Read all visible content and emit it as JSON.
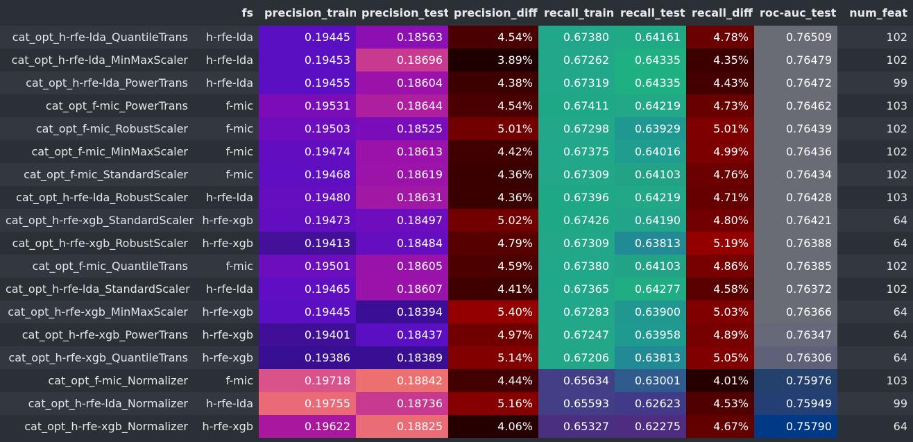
{
  "table": {
    "columns": [
      {
        "key": "fs",
        "label": "fs"
      },
      {
        "key": "precision_train",
        "label": "precision_train"
      },
      {
        "key": "precision_test",
        "label": "precision_test"
      },
      {
        "key": "precision_diff",
        "label": "precision_diff"
      },
      {
        "key": "recall_train",
        "label": "recall_train"
      },
      {
        "key": "recall_test",
        "label": "recall_test"
      },
      {
        "key": "recall_diff",
        "label": "recall_diff"
      },
      {
        "key": "roc_auc_test",
        "label": "roc-auc_test"
      },
      {
        "key": "num_feat",
        "label": "num_feat"
      }
    ],
    "rows": [
      {
        "name": "cat_opt_h-rfe-lda_QuantileTrans",
        "fs": "h-rfe-lda",
        "precision_train": "0.19445",
        "precision_test": "0.18563",
        "precision_diff": "4.54%",
        "recall_train": "0.67380",
        "recall_test": "0.64161",
        "recall_diff": "4.78%",
        "roc_auc_test": "0.76509",
        "num_feat": "102"
      },
      {
        "name": "cat_opt_h-rfe-lda_MinMaxScaler",
        "fs": "h-rfe-lda",
        "precision_train": "0.19453",
        "precision_test": "0.18696",
        "precision_diff": "3.89%",
        "recall_train": "0.67262",
        "recall_test": "0.64335",
        "recall_diff": "4.35%",
        "roc_auc_test": "0.76479",
        "num_feat": "102"
      },
      {
        "name": "cat_opt_h-rfe-lda_PowerTrans",
        "fs": "h-rfe-lda",
        "precision_train": "0.19455",
        "precision_test": "0.18604",
        "precision_diff": "4.38%",
        "recall_train": "0.67319",
        "recall_test": "0.64335",
        "recall_diff": "4.43%",
        "roc_auc_test": "0.76472",
        "num_feat": "99"
      },
      {
        "name": "cat_opt_f-mic_PowerTrans",
        "fs": "f-mic",
        "precision_train": "0.19531",
        "precision_test": "0.18644",
        "precision_diff": "4.54%",
        "recall_train": "0.67411",
        "recall_test": "0.64219",
        "recall_diff": "4.73%",
        "roc_auc_test": "0.76462",
        "num_feat": "103"
      },
      {
        "name": "cat_opt_f-mic_RobustScaler",
        "fs": "f-mic",
        "precision_train": "0.19503",
        "precision_test": "0.18525",
        "precision_diff": "5.01%",
        "recall_train": "0.67298",
        "recall_test": "0.63929",
        "recall_diff": "5.01%",
        "roc_auc_test": "0.76439",
        "num_feat": "102"
      },
      {
        "name": "cat_opt_f-mic_MinMaxScaler",
        "fs": "f-mic",
        "precision_train": "0.19474",
        "precision_test": "0.18613",
        "precision_diff": "4.42%",
        "recall_train": "0.67375",
        "recall_test": "0.64016",
        "recall_diff": "4.99%",
        "roc_auc_test": "0.76436",
        "num_feat": "102"
      },
      {
        "name": "cat_opt_f-mic_StandardScaler",
        "fs": "f-mic",
        "precision_train": "0.19468",
        "precision_test": "0.18619",
        "precision_diff": "4.36%",
        "recall_train": "0.67309",
        "recall_test": "0.64103",
        "recall_diff": "4.76%",
        "roc_auc_test": "0.76434",
        "num_feat": "102"
      },
      {
        "name": "cat_opt_h-rfe-lda_RobustScaler",
        "fs": "h-rfe-lda",
        "precision_train": "0.19480",
        "precision_test": "0.18631",
        "precision_diff": "4.36%",
        "recall_train": "0.67396",
        "recall_test": "0.64219",
        "recall_diff": "4.71%",
        "roc_auc_test": "0.76428",
        "num_feat": "103"
      },
      {
        "name": "cat_opt_h-rfe-xgb_StandardScaler",
        "fs": "h-rfe-xgb",
        "precision_train": "0.19473",
        "precision_test": "0.18497",
        "precision_diff": "5.02%",
        "recall_train": "0.67426",
        "recall_test": "0.64190",
        "recall_diff": "4.80%",
        "roc_auc_test": "0.76421",
        "num_feat": "64"
      },
      {
        "name": "cat_opt_h-rfe-xgb_RobustScaler",
        "fs": "h-rfe-xgb",
        "precision_train": "0.19413",
        "precision_test": "0.18484",
        "precision_diff": "4.79%",
        "recall_train": "0.67309",
        "recall_test": "0.63813",
        "recall_diff": "5.19%",
        "roc_auc_test": "0.76388",
        "num_feat": "64"
      },
      {
        "name": "cat_opt_f-mic_QuantileTrans",
        "fs": "f-mic",
        "precision_train": "0.19501",
        "precision_test": "0.18605",
        "precision_diff": "4.59%",
        "recall_train": "0.67380",
        "recall_test": "0.64103",
        "recall_diff": "4.86%",
        "roc_auc_test": "0.76385",
        "num_feat": "102"
      },
      {
        "name": "cat_opt_h-rfe-lda_StandardScaler",
        "fs": "h-rfe-lda",
        "precision_train": "0.19465",
        "precision_test": "0.18607",
        "precision_diff": "4.41%",
        "recall_train": "0.67365",
        "recall_test": "0.64277",
        "recall_diff": "4.58%",
        "roc_auc_test": "0.76372",
        "num_feat": "102"
      },
      {
        "name": "cat_opt_h-rfe-xgb_MinMaxScaler",
        "fs": "h-rfe-xgb",
        "precision_train": "0.19445",
        "precision_test": "0.18394",
        "precision_diff": "5.40%",
        "recall_train": "0.67283",
        "recall_test": "0.63900",
        "recall_diff": "5.03%",
        "roc_auc_test": "0.76366",
        "num_feat": "64"
      },
      {
        "name": "cat_opt_h-rfe-xgb_PowerTrans",
        "fs": "h-rfe-xgb",
        "precision_train": "0.19401",
        "precision_test": "0.18437",
        "precision_diff": "4.97%",
        "recall_train": "0.67247",
        "recall_test": "0.63958",
        "recall_diff": "4.89%",
        "roc_auc_test": "0.76347",
        "num_feat": "64"
      },
      {
        "name": "cat_opt_h-rfe-xgb_QuantileTrans",
        "fs": "h-rfe-xgb",
        "precision_train": "0.19386",
        "precision_test": "0.18389",
        "precision_diff": "5.14%",
        "recall_train": "0.67206",
        "recall_test": "0.63813",
        "recall_diff": "5.05%",
        "roc_auc_test": "0.76306",
        "num_feat": "64"
      },
      {
        "name": "cat_opt_f-mic_Normalizer",
        "fs": "f-mic",
        "precision_train": "0.19718",
        "precision_test": "0.18842",
        "precision_diff": "4.44%",
        "recall_train": "0.65634",
        "recall_test": "0.63001",
        "recall_diff": "4.01%",
        "roc_auc_test": "0.75976",
        "num_feat": "103"
      },
      {
        "name": "cat_opt_h-rfe-lda_Normalizer",
        "fs": "h-rfe-lda",
        "precision_train": "0.19755",
        "precision_test": "0.18736",
        "precision_diff": "5.16%",
        "recall_train": "0.65593",
        "recall_test": "0.62623",
        "recall_diff": "4.53%",
        "roc_auc_test": "0.75949",
        "num_feat": "99"
      },
      {
        "name": "cat_opt_h-rfe-xgb_Normalizer",
        "fs": "h-rfe-xgb",
        "precision_train": "0.19622",
        "precision_test": "0.18825",
        "precision_diff": "4.06%",
        "recall_train": "0.65327",
        "recall_test": "0.62275",
        "recall_diff": "4.67%",
        "roc_auc_test": "0.75790",
        "num_feat": "64"
      }
    ],
    "cell_colors": {
      "precision_train": [
        "#5a0fc2",
        "#5a0fc2",
        "#5a0fc2",
        "#7c0cb8",
        "#6e0dbe",
        "#620ec0",
        "#600ec1",
        "#650ebf",
        "#620ec0",
        "#44109a",
        "#6c0dbe",
        "#5f0ec1",
        "#5a0fc2",
        "#3f0f98",
        "#380e93",
        "#d9528a",
        "#ea6a78",
        "#a9179f"
      ],
      "precision_test": [
        "#8c0fb3",
        "#c83a8f",
        "#9a12aa",
        "#ae1f9f",
        "#7a0db9",
        "#9a12aa",
        "#9b13a9",
        "#a118a5",
        "#6e0dbe",
        "#650ebf",
        "#9912aa",
        "#9a12aa",
        "#3a0f95",
        "#5a0fc2",
        "#380e93",
        "#ed7070",
        "#c83a8f",
        "#ea6c76"
      ],
      "precision_diff": [
        "#4a0000",
        "#1e0000",
        "#3c0000",
        "#4a0000",
        "#720000",
        "#410000",
        "#3a0000",
        "#3a0000",
        "#730000",
        "#560000",
        "#4c0000",
        "#3f0000",
        "#940000",
        "#700000",
        "#830000",
        "#420000",
        "#870000",
        "#260000"
      ],
      "recall_train": [
        "#21a789",
        "#22a889",
        "#21a789",
        "#1ea886",
        "#22a889",
        "#21a789",
        "#22a889",
        "#1ea886",
        "#1ea886",
        "#22a889",
        "#21a789",
        "#21a789",
        "#21a789",
        "#22a889",
        "#22a889",
        "#423f86",
        "#423f86",
        "#4a2f80"
      ],
      "recall_test": [
        "#20a985",
        "#1fb081",
        "#1fb081",
        "#22a887",
        "#209892",
        "#209d8f",
        "#22a386",
        "#22a887",
        "#21a489",
        "#228a94",
        "#22a386",
        "#21ad83",
        "#20988f",
        "#1f9a90",
        "#228a94",
        "#2f5c8c",
        "#413a88",
        "#4e2c80"
      ],
      "recall_diff": [
        "#6b0000",
        "#3d0000",
        "#440000",
        "#680000",
        "#7e0000",
        "#7c0000",
        "#6b0000",
        "#660000",
        "#720000",
        "#940000",
        "#770000",
        "#5a0000",
        "#800000",
        "#770000",
        "#800000",
        "#260000",
        "#510000",
        "#620000"
      ],
      "roc_auc_test": [
        "#6a6c75",
        "#6a6c75",
        "#6a6c75",
        "#6a6c75",
        "#6a6c75",
        "#6a6c75",
        "#6a6c75",
        "#6a6c75",
        "#6a6c75",
        "#6a6c75",
        "#6a6c75",
        "#6a6c75",
        "#6a6c75",
        "#67687a",
        "#5f6178",
        "#24416e",
        "#243f73",
        "#003a86"
      ]
    }
  }
}
